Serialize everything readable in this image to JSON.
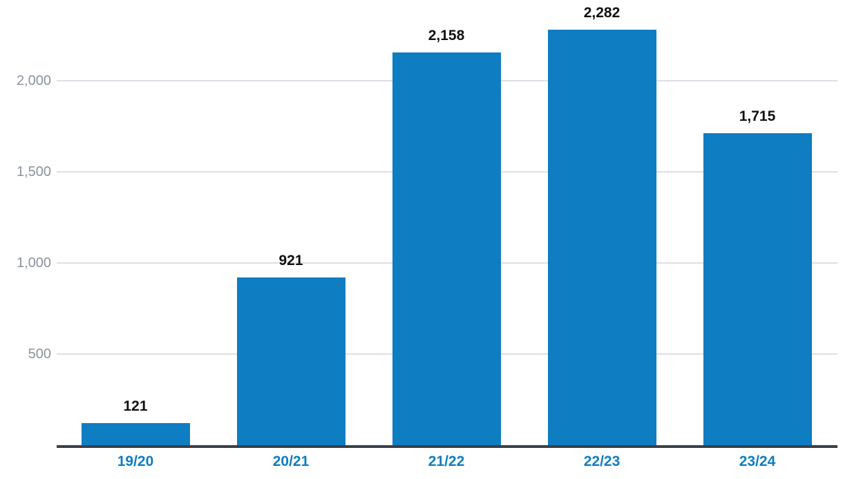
{
  "chart_data": {
    "type": "bar",
    "categories": [
      "19/20",
      "20/21",
      "21/22",
      "22/23",
      "23/24"
    ],
    "values": [
      121,
      921,
      2158,
      2282,
      1715
    ],
    "value_labels": [
      "121",
      "921",
      "2,158",
      "2,282",
      "1,715"
    ],
    "yticks": [
      {
        "value": 500,
        "label": "500"
      },
      {
        "value": 1000,
        "label": "1,000"
      },
      {
        "value": 1500,
        "label": "1,500"
      },
      {
        "value": 2000,
        "label": "2,000"
      }
    ],
    "ylim": [
      0,
      2445
    ],
    "grid": true,
    "legend": "none",
    "title": "",
    "xlabel": "",
    "ylabel": "",
    "colors": {
      "bar": "#0e7dc2",
      "x_tick_label": "#0e7dc2",
      "y_tick_label": "#8b919d",
      "gridline": "#dcdfe6",
      "baseline": "#3a3f46",
      "value_label": "#111111",
      "background": "#ffffff"
    }
  }
}
